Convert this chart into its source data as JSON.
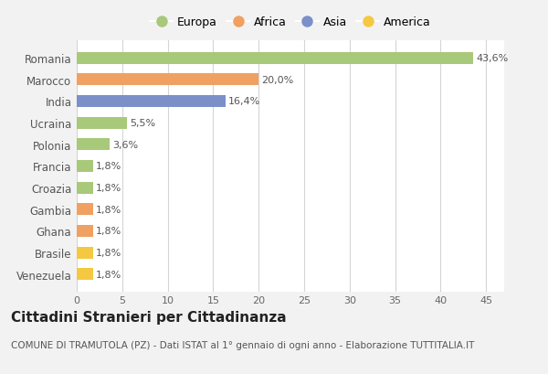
{
  "categories": [
    "Venezuela",
    "Brasile",
    "Ghana",
    "Gambia",
    "Croazia",
    "Francia",
    "Polonia",
    "Ucraina",
    "India",
    "Marocco",
    "Romania"
  ],
  "values": [
    1.8,
    1.8,
    1.8,
    1.8,
    1.8,
    1.8,
    3.6,
    5.5,
    16.4,
    20.0,
    43.6
  ],
  "colors": [
    "#f5c842",
    "#f5c842",
    "#f0a060",
    "#f0a060",
    "#a8c87a",
    "#a8c87a",
    "#a8c87a",
    "#a8c87a",
    "#7b8fc9",
    "#f0a060",
    "#a8c87a"
  ],
  "labels": [
    "1,8%",
    "1,8%",
    "1,8%",
    "1,8%",
    "1,8%",
    "1,8%",
    "3,6%",
    "5,5%",
    "16,4%",
    "20,0%",
    "43,6%"
  ],
  "legend_labels": [
    "Europa",
    "Africa",
    "Asia",
    "America"
  ],
  "legend_colors": [
    "#a8c87a",
    "#f0a060",
    "#7b8fc9",
    "#f5c842"
  ],
  "title": "Cittadini Stranieri per Cittadinanza",
  "subtitle": "COMUNE DI TRAMUTOLA (PZ) - Dati ISTAT al 1° gennaio di ogni anno - Elaborazione TUTTITALIA.IT",
  "xlim": [
    0,
    47
  ],
  "xticks": [
    0,
    5,
    10,
    15,
    20,
    25,
    30,
    35,
    40,
    45
  ],
  "background_color": "#f2f2f2",
  "bar_background": "#ffffff",
  "grid_color": "#d5d5d5",
  "label_fontsize": 8,
  "tick_fontsize": 8,
  "title_fontsize": 11,
  "subtitle_fontsize": 7.5,
  "ytick_fontsize": 8.5
}
